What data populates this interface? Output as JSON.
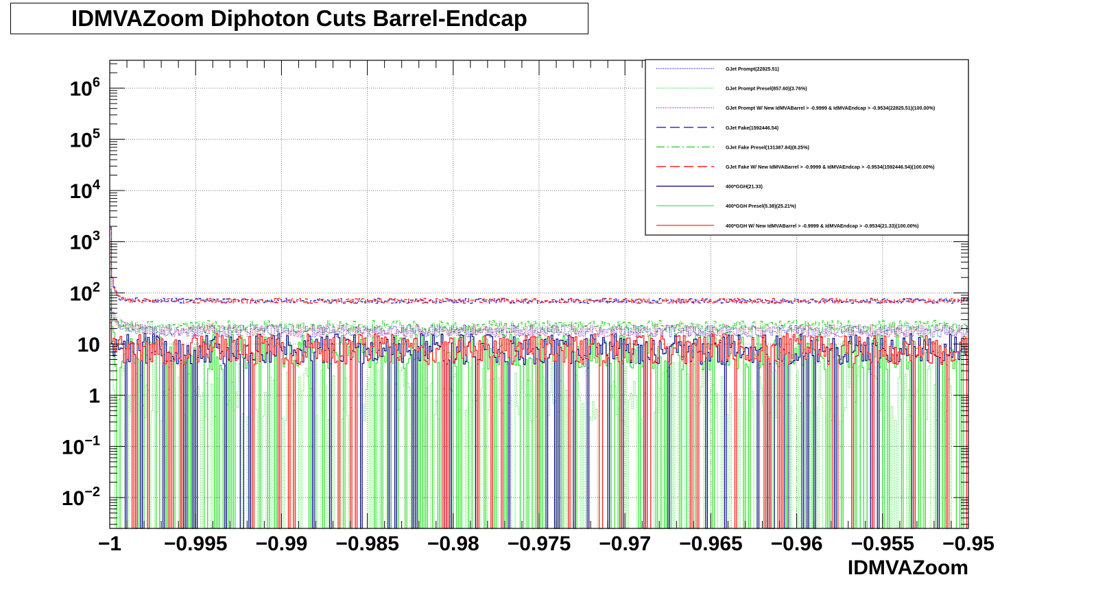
{
  "title": "IDMVAZoom Diphoton Cuts Barrel-Endcap",
  "chart_data": {
    "type": "line",
    "histogram": true,
    "title": "IDMVAZoom Diphoton Cuts Barrel-Endcap",
    "xlabel": "IDMVAZoom",
    "ylabel": "",
    "xlim": [
      -1,
      -0.95
    ],
    "ylim": [
      0.0025,
      3500000
    ],
    "ylog": true,
    "grid": true,
    "legend_position": "top-right",
    "xtick_labels": [
      "−1",
      "−0.995",
      "−0.99",
      "−0.985",
      "−0.98",
      "−0.975",
      "−0.97",
      "−0.965",
      "−0.96",
      "−0.955",
      "−0.95"
    ],
    "xtick_values": [
      -1,
      -0.995,
      -0.99,
      -0.985,
      -0.98,
      -0.975,
      -0.97,
      -0.965,
      -0.96,
      -0.955,
      -0.95
    ],
    "ytick_labels": [
      {
        "base": "10",
        "exp": "6",
        "value": 1000000
      },
      {
        "base": "10",
        "exp": "5",
        "value": 100000
      },
      {
        "base": "10",
        "exp": "4",
        "value": 10000
      },
      {
        "base": "10",
        "exp": "3",
        "value": 1000
      },
      {
        "base": "10",
        "exp": "2",
        "value": 100
      },
      {
        "base": "10",
        "exp": "",
        "value": 10
      },
      {
        "base": "1",
        "exp": "",
        "value": 1
      },
      {
        "base": "10",
        "exp": "−1",
        "value": 0.1
      },
      {
        "base": "10",
        "exp": "−2",
        "value": 0.01
      }
    ],
    "series": [
      {
        "name": "GJet Prompt(22825.51)",
        "color": "#3030c8",
        "style": "dotted",
        "profile": {
          "first": 300,
          "end": 18,
          "decay": 5,
          "noise": 0.12,
          "zero_prob": 0
        }
      },
      {
        "name": "GJet Prompt Presel(857.60)(3.76%)",
        "color": "#30e030",
        "style": "dotted",
        "profile": {
          "first": 20,
          "end": 1.2,
          "decay": 5,
          "noise": 0.6,
          "zero_prob": 0.45
        }
      },
      {
        "name": "GJet Prompt W/ New IdMVABarrel > -0.9999 & IdMVAEndcap > -0.9534(22825.51)(100.00%)",
        "color": "#c0206a",
        "style": "dotted",
        "profile": {
          "first": 300,
          "end": 18,
          "decay": 5,
          "noise": 0.12,
          "zero_prob": 0
        }
      },
      {
        "name": "GJet Fake(1592446.54)",
        "color": "#2020d0",
        "style": "dashed",
        "profile": {
          "first": 1800,
          "end": 70,
          "decay": 6,
          "noise": 0.05,
          "zero_prob": 0
        }
      },
      {
        "name": "GJet Fake Presel(131387.84)(8.25%)",
        "color": "#30d030",
        "style": "dashdot",
        "profile": {
          "first": 150,
          "end": 22,
          "decay": 6,
          "noise": 0.12,
          "zero_prob": 0
        }
      },
      {
        "name": "GJet Fake W/ New IdMVABarrel > -0.9999 & IdMVAEndcap > -0.9534(1592446.54)(100.00%)",
        "color": "#ff2020",
        "style": "dashed",
        "profile": {
          "first": 1800,
          "end": 70,
          "decay": 6,
          "noise": 0.05,
          "zero_prob": 0
        }
      },
      {
        "name": "400*GGH(21.33)",
        "color": "#000080",
        "style": "solid",
        "profile": {
          "first": 40,
          "end": 8,
          "decay": 5,
          "noise": 0.3,
          "zero_prob": 0.08
        }
      },
      {
        "name": "400*GGH Presel(5.38)(25.21%)",
        "color": "#30e030",
        "style": "solid",
        "profile": {
          "first": 60,
          "end": 7,
          "decay": 6,
          "noise": 0.35,
          "zero_prob": 0.22
        }
      },
      {
        "name": "400*GGH W/ New IdMVABarrel > -0.9999 & IdMVAEndcap > -0.9534(21.33)(100.00%)",
        "color": "#ff1010",
        "style": "solid",
        "profile": {
          "first": 40,
          "end": 8,
          "decay": 5,
          "noise": 0.3,
          "zero_prob": 0.08
        }
      }
    ]
  }
}
